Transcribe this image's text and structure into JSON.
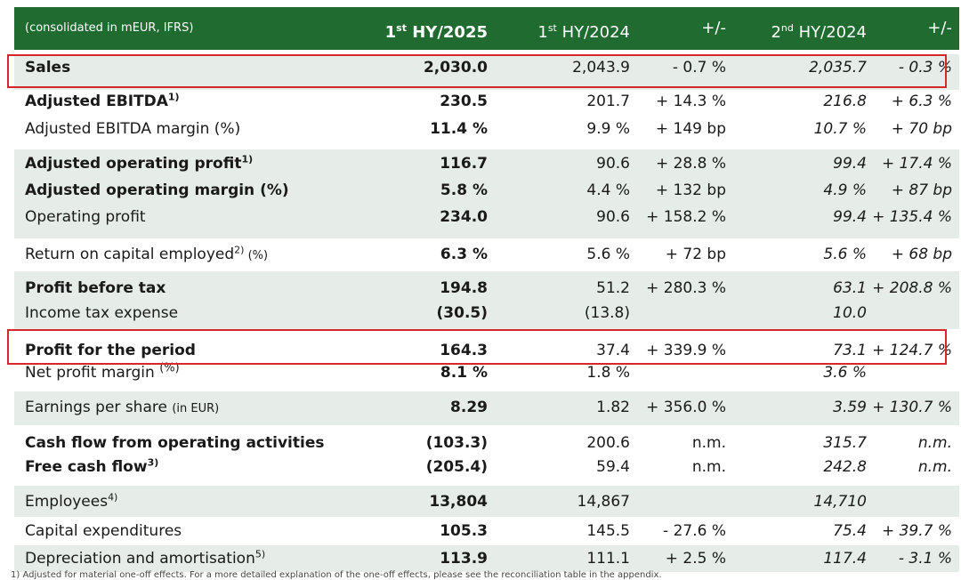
{
  "header": {
    "note": "(consolidated in mEUR, IFRS)",
    "col1_pre": "1",
    "col1_sup": "st",
    "col1_post": " HY/2025",
    "col2_pre": "1",
    "col2_sup": "st",
    "col2_post": " HY/2024",
    "col3": "+/-",
    "col4_pre": "2",
    "col4_sup": "nd",
    "col4_post": " HY/2024",
    "col5": "+/-"
  },
  "rows": {
    "sales": {
      "label": "Sales",
      "v1": "2,030.0",
      "v2": "2,043.9",
      "d1": "- 0.7 %",
      "v3": "2,035.7",
      "d2": "- 0.3 %"
    },
    "adj_ebitda": {
      "label": "Adjusted EBITDA",
      "sup": "1)",
      "v1": "230.5",
      "v2": "201.7",
      "d1": "+ 14.3 %",
      "v3": "216.8",
      "d2": "+ 6.3 %"
    },
    "adj_ebitda_margin": {
      "label": "Adjusted EBITDA margin (%)",
      "v1": "11.4 %",
      "v2": "9.9 %",
      "d1": "+ 149 bp",
      "v3": "10.7 %",
      "d2": "+ 70 bp"
    },
    "adj_op_profit": {
      "label": "Adjusted operating profit",
      "sup": "1)",
      "v1": "116.7",
      "v2": "90.6",
      "d1": "+ 28.8 %",
      "v3": "99.4",
      "d2": "+ 17.4 %"
    },
    "adj_op_margin": {
      "label": "Adjusted operating margin (%)",
      "v1": "5.8 %",
      "v2": "4.4 %",
      "d1": "+ 132 bp",
      "v3": "4.9 %",
      "d2": "+ 87 bp"
    },
    "op_profit": {
      "label": "Operating profit",
      "v1": "234.0",
      "v2": "90.6",
      "d1": "+ 158.2 %",
      "v3": "99.4",
      "d2": "+ 135.4 %"
    },
    "roce": {
      "label": "Return on capital employed",
      "sup": "2)",
      "unit": " (%)",
      "v1": "6.3 %",
      "v2": "5.6 %",
      "d1": "+ 72 bp",
      "v3": "5.6 %",
      "d2": "+ 68 bp"
    },
    "pbt": {
      "label": "Profit before tax",
      "v1": "194.8",
      "v2": "51.2",
      "d1": "+ 280.3 %",
      "v3": "63.1",
      "d2": "+ 208.8 %"
    },
    "tax": {
      "label": "Income tax expense",
      "v1": "(30.5)",
      "v2": "(13.8)",
      "d1": "",
      "v3": "10.0",
      "d2": ""
    },
    "profit_period": {
      "label": "Profit for the period",
      "v1": "164.3",
      "v2": "37.4",
      "d1": "+ 339.9 %",
      "v3": "73.1",
      "d2": "+ 124.7 %"
    },
    "net_margin": {
      "label": "Net profit margin",
      "unit": "(%)",
      "v1": "8.1 %",
      "v2": "1.8 %",
      "d1": "",
      "v3": "3.6 %",
      "d2": ""
    },
    "eps": {
      "label": "Earnings per share",
      "unit": "(in EUR)",
      "v1": "8.29",
      "v2": "1.82",
      "d1": "+ 356.0 %",
      "v3": "3.59",
      "d2": "+ 130.7 %"
    },
    "cfo": {
      "label": "Cash flow from operating activities",
      "v1": "(103.3)",
      "v2": "200.6",
      "d1": "n.m.",
      "v3": "315.7",
      "d2": "n.m."
    },
    "fcf": {
      "label": "Free cash flow",
      "sup": "3)",
      "v1": "(205.4)",
      "v2": "59.4",
      "d1": "n.m.",
      "v3": "242.8",
      "d2": "n.m."
    },
    "employees": {
      "label": "Employees",
      "sup": "4)",
      "v1": "13,804",
      "v2": "14,867",
      "d1": "",
      "v3": "14,710",
      "d2": ""
    },
    "capex": {
      "label": "Capital expenditures",
      "v1": "105.3",
      "v2": "145.5",
      "d1": "- 27.6 %",
      "v3": "75.4",
      "d2": "+ 39.7 %"
    },
    "da": {
      "label": "Depreciation and amortisation",
      "sup": "5)",
      "v1": "113.9",
      "v2": "111.1",
      "d1": "+ 2.5 %",
      "v3": "117.4",
      "d2": "- 3.1 %"
    }
  },
  "footnote": "1) Adjusted for material one-off effects. For a more detailed explanation of the one-off effects, please see the reconciliation table in the appendix."
}
